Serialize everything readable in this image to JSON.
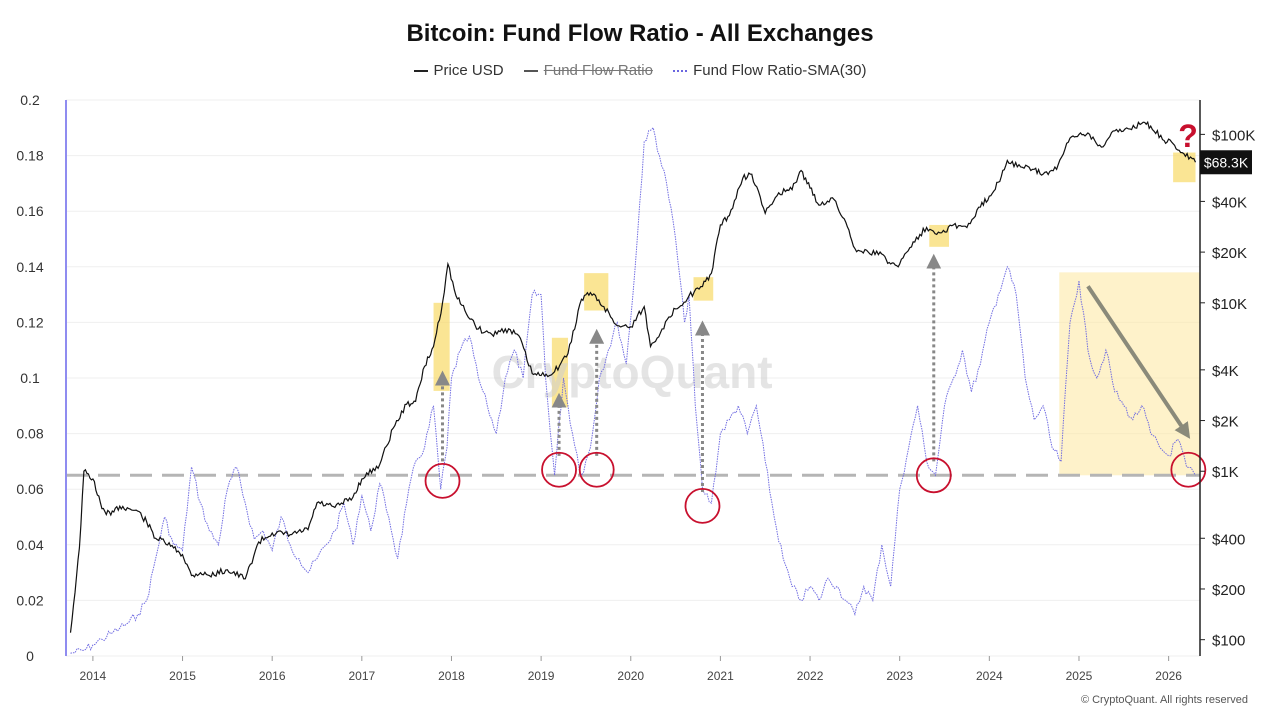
{
  "header": {
    "title": "Bitcoin: Fund Flow Ratio - All Exchanges"
  },
  "legend": [
    {
      "label": "Price USD",
      "style": "solid",
      "color": "#222222",
      "struck": false
    },
    {
      "label": "Fund Flow Ratio",
      "style": "solid",
      "color": "#555555",
      "struck": true
    },
    {
      "label": "Fund Flow Ratio-SMA(30)",
      "style": "dotted",
      "color": "#6a66e0",
      "struck": false
    }
  ],
  "watermark": "CryptoQuant",
  "copyright": "© CryptoQuant. All rights reserved",
  "question_mark": "?",
  "chart_data": {
    "type": "line",
    "x_axis": {
      "ticks": [
        "2014",
        "2015",
        "2016",
        "2017",
        "2018",
        "2019",
        "2020",
        "2021",
        "2022",
        "2023",
        "2024",
        "2025",
        "2026"
      ],
      "range": [
        2013.7,
        2026.35
      ]
    },
    "y_left": {
      "range": [
        0,
        0.2
      ],
      "ticks": [
        "0",
        "0.02",
        "0.04",
        "0.06",
        "0.08",
        "0.1",
        "0.12",
        "0.14",
        "0.16",
        "0.18",
        "0.2"
      ]
    },
    "y_right": {
      "scale": "log",
      "range": [
        80,
        160000
      ],
      "ticks": [
        {
          "label": "$100",
          "value": 100
        },
        {
          "label": "$200",
          "value": 200
        },
        {
          "label": "$400",
          "value": 400
        },
        {
          "label": "$1K",
          "value": 1000
        },
        {
          "label": "$2K",
          "value": 2000
        },
        {
          "label": "$4K",
          "value": 4000
        },
        {
          "label": "$10K",
          "value": 10000
        },
        {
          "label": "$20K",
          "value": 20000
        },
        {
          "label": "$40K",
          "value": 40000
        },
        {
          "label": "$100K",
          "value": 100000
        }
      ]
    },
    "current_price_label": "$68.3K",
    "current_price_value": 68300,
    "support_level": 0.065,
    "series": [
      {
        "name": "Price USD",
        "axis": "right",
        "color": "#111111",
        "x": [
          2013.75,
          2013.85,
          2013.9,
          2014.0,
          2014.1,
          2014.2,
          2014.3,
          2014.4,
          2014.5,
          2014.6,
          2014.7,
          2014.8,
          2014.9,
          2015.0,
          2015.1,
          2015.2,
          2015.3,
          2015.5,
          2015.7,
          2015.85,
          2016.0,
          2016.2,
          2016.4,
          2016.5,
          2016.7,
          2016.9,
          2017.0,
          2017.2,
          2017.35,
          2017.5,
          2017.6,
          2017.7,
          2017.8,
          2017.9,
          2017.96,
          2018.05,
          2018.15,
          2018.3,
          2018.45,
          2018.6,
          2018.75,
          2018.9,
          2019.0,
          2019.15,
          2019.3,
          2019.45,
          2019.55,
          2019.7,
          2019.85,
          2020.0,
          2020.15,
          2020.22,
          2020.35,
          2020.5,
          2020.65,
          2020.8,
          2020.9,
          2021.0,
          2021.1,
          2021.25,
          2021.35,
          2021.5,
          2021.65,
          2021.8,
          2021.9,
          2022.0,
          2022.1,
          2022.25,
          2022.4,
          2022.5,
          2022.65,
          2022.8,
          2022.9,
          2023.0,
          2023.15,
          2023.3,
          2023.45,
          2023.6,
          2023.75,
          2023.9,
          2024.0,
          2024.1,
          2024.2,
          2024.35,
          2024.5,
          2024.6,
          2024.75,
          2024.9,
          2025.0,
          2025.1,
          2025.25,
          2025.4,
          2025.55,
          2025.7,
          2025.8,
          2025.95,
          2026.05,
          2026.15,
          2026.3
        ],
        "values": [
          110,
          350,
          1000,
          900,
          600,
          550,
          620,
          600,
          580,
          500,
          400,
          380,
          350,
          320,
          240,
          250,
          240,
          260,
          230,
          380,
          430,
          420,
          450,
          650,
          610,
          700,
          900,
          1100,
          1800,
          2500,
          2600,
          4200,
          5500,
          10000,
          17000,
          11000,
          9000,
          7000,
          6500,
          7000,
          6400,
          3800,
          3700,
          3900,
          5000,
          10500,
          11500,
          9500,
          7300,
          7200,
          9500,
          5500,
          7000,
          9200,
          11000,
          12500,
          15000,
          29000,
          33000,
          55000,
          58000,
          34000,
          45000,
          47000,
          61000,
          48000,
          38000,
          42000,
          30000,
          21000,
          20000,
          19500,
          17000,
          17000,
          23000,
          28000,
          26000,
          29000,
          28000,
          37000,
          43000,
          52000,
          70000,
          64000,
          62000,
          58000,
          62000,
          95000,
          100000,
          102000,
          84000,
          105000,
          108000,
          116000,
          112000,
          92000,
          88000,
          78000,
          68300
        ]
      },
      {
        "name": "Fund Flow Ratio-SMA(30)",
        "axis": "left",
        "color": "#6a66e0",
        "x": [
          2013.75,
          2013.9,
          2014.0,
          2014.1,
          2014.2,
          2014.3,
          2014.4,
          2014.5,
          2014.6,
          2014.7,
          2014.8,
          2014.9,
          2015.0,
          2015.1,
          2015.2,
          2015.3,
          2015.4,
          2015.5,
          2015.6,
          2015.7,
          2015.8,
          2015.9,
          2016.0,
          2016.1,
          2016.2,
          2016.3,
          2016.4,
          2016.5,
          2016.6,
          2016.7,
          2016.8,
          2016.9,
          2017.0,
          2017.1,
          2017.2,
          2017.3,
          2017.4,
          2017.5,
          2017.6,
          2017.7,
          2017.8,
          2017.88,
          2017.95,
          2018.0,
          2018.1,
          2018.2,
          2018.3,
          2018.4,
          2018.5,
          2018.6,
          2018.7,
          2018.8,
          2018.9,
          2019.0,
          2019.05,
          2019.15,
          2019.25,
          2019.35,
          2019.45,
          2019.55,
          2019.65,
          2019.75,
          2019.85,
          2019.95,
          2020.05,
          2020.15,
          2020.25,
          2020.32,
          2020.4,
          2020.5,
          2020.6,
          2020.65,
          2020.72,
          2020.8,
          2020.9,
          2021.0,
          2021.1,
          2021.2,
          2021.3,
          2021.4,
          2021.5,
          2021.6,
          2021.7,
          2021.8,
          2021.9,
          2022.0,
          2022.1,
          2022.2,
          2022.3,
          2022.4,
          2022.5,
          2022.6,
          2022.7,
          2022.8,
          2022.9,
          2023.0,
          2023.1,
          2023.2,
          2023.3,
          2023.4,
          2023.5,
          2023.6,
          2023.7,
          2023.8,
          2023.9,
          2024.0,
          2024.1,
          2024.2,
          2024.3,
          2024.4,
          2024.5,
          2024.6,
          2024.7,
          2024.8,
          2024.9,
          2025.0,
          2025.1,
          2025.2,
          2025.3,
          2025.4,
          2025.5,
          2025.6,
          2025.7,
          2025.8,
          2025.9,
          2026.0,
          2026.1,
          2026.2,
          2026.3
        ],
        "values": [
          0.001,
          0.002,
          0.004,
          0.006,
          0.008,
          0.01,
          0.012,
          0.015,
          0.02,
          0.035,
          0.05,
          0.04,
          0.038,
          0.068,
          0.055,
          0.045,
          0.04,
          0.06,
          0.068,
          0.055,
          0.042,
          0.045,
          0.038,
          0.05,
          0.04,
          0.035,
          0.03,
          0.035,
          0.04,
          0.045,
          0.055,
          0.04,
          0.058,
          0.045,
          0.062,
          0.05,
          0.035,
          0.055,
          0.07,
          0.075,
          0.09,
          0.06,
          0.075,
          0.1,
          0.11,
          0.115,
          0.1,
          0.09,
          0.08,
          0.1,
          0.11,
          0.1,
          0.13,
          0.13,
          0.1,
          0.065,
          0.1,
          0.08,
          0.065,
          0.075,
          0.1,
          0.11,
          0.12,
          0.105,
          0.14,
          0.185,
          0.19,
          0.18,
          0.17,
          0.15,
          0.12,
          0.13,
          0.09,
          0.06,
          0.055,
          0.08,
          0.085,
          0.09,
          0.08,
          0.09,
          0.07,
          0.05,
          0.035,
          0.025,
          0.02,
          0.025,
          0.02,
          0.028,
          0.025,
          0.02,
          0.015,
          0.025,
          0.02,
          0.04,
          0.025,
          0.06,
          0.075,
          0.09,
          0.07,
          0.065,
          0.09,
          0.1,
          0.11,
          0.095,
          0.105,
          0.12,
          0.13,
          0.14,
          0.13,
          0.1,
          0.085,
          0.09,
          0.075,
          0.07,
          0.12,
          0.135,
          0.11,
          0.1,
          0.11,
          0.095,
          0.09,
          0.085,
          0.09,
          0.08,
          0.075,
          0.072,
          0.078,
          0.068,
          0.065
        ]
      }
    ],
    "highlight_boxes": [
      {
        "x0": 2017.8,
        "x1": 2017.98,
        "y0": 3000,
        "y1": 10000
      },
      {
        "x0": 2019.12,
        "x1": 2019.3,
        "y0": 2400,
        "y1": 6200
      },
      {
        "x0": 2019.48,
        "x1": 2019.75,
        "y0": 9000,
        "y1": 15000
      },
      {
        "x0": 2020.7,
        "x1": 2020.92,
        "y0": 10300,
        "y1": 14200
      },
      {
        "x0": 2023.33,
        "x1": 2023.55,
        "y0": 21500,
        "y1": 29000
      },
      {
        "x0": 2026.05,
        "x1": 2026.3,
        "y0": 52000,
        "y1": 78000
      }
    ],
    "shaded_region": {
      "x0": 2024.78,
      "x1": 2026.35,
      "y0": 0.065,
      "y1": 0.138
    },
    "circles": [
      {
        "x": 2017.9,
        "y": 0.063
      },
      {
        "x": 2019.2,
        "y": 0.067
      },
      {
        "x": 2019.62,
        "y": 0.067
      },
      {
        "x": 2020.8,
        "y": 0.054
      },
      {
        "x": 2023.38,
        "y": 0.065
      },
      {
        "x": 2026.22,
        "y": 0.067
      }
    ],
    "vertical_arrows": [
      {
        "x": 2017.9,
        "y_from": 0.07,
        "y_to": 0.1
      },
      {
        "x": 2019.2,
        "y_from": 0.072,
        "y_to": 0.092
      },
      {
        "x": 2019.62,
        "y_from": 0.072,
        "y_to": 0.115
      },
      {
        "x": 2020.8,
        "y_from": 0.059,
        "y_to": 0.118
      },
      {
        "x": 2023.38,
        "y_from": 0.07,
        "y_to": 0.142
      }
    ],
    "trend_arrow": {
      "x_from": 2025.1,
      "y_from": 0.133,
      "x_to": 2026.2,
      "y_to": 0.08
    }
  }
}
